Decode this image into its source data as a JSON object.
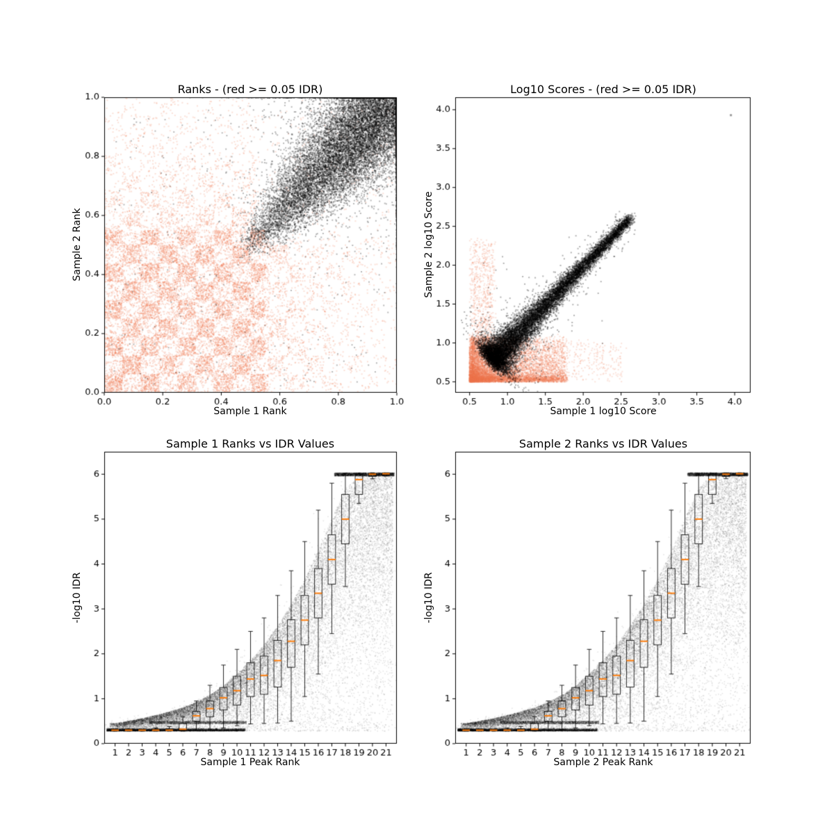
{
  "chart_data": [
    {
      "id": "ranks-scatter",
      "type": "scatter",
      "title": "Ranks - (red >= 0.05 IDR)",
      "xlabel": "Sample 1 Rank",
      "ylabel": "Sample 2 Rank",
      "xlim": [
        0,
        1
      ],
      "ylim": [
        0,
        1
      ],
      "xtick_values": [
        0,
        0.2,
        0.4,
        0.6,
        0.8,
        1.0
      ],
      "xtick_labels": [
        "0.0",
        "0.2",
        "0.4",
        "0.6",
        "0.8",
        "1.0"
      ],
      "ytick_values": [
        0,
        0.2,
        0.4,
        0.6,
        0.8,
        1.0
      ],
      "ytick_labels": [
        "0.0",
        "0.2",
        "0.4",
        "0.6",
        "0.8",
        "1.0"
      ],
      "series": [
        {
          "name": "irreproducible-peaks (IDR >= 0.05)",
          "color": "#f1764f",
          "alpha": 0.22,
          "size": 2,
          "gen": {
            "kind": "checker",
            "n": 17000,
            "cells": 16
          }
        },
        {
          "name": "reproducible-peaks (IDR < 0.05)",
          "color": "#000000",
          "alpha": 0.28,
          "size": 2,
          "gen": {
            "kind": "comet",
            "n": 15000,
            "from": [
              0.47,
              0.47
            ],
            "to": [
              0.997,
              0.997
            ],
            "tPow": 0.5,
            "wMode": "linear",
            "wMin": 0.012,
            "wMax": 0.125,
            "wEnd": 0.35,
            "alongJitter": 0.02,
            "halo": 0.07,
            "haloMult": 3.2,
            "scatter": 0.02,
            "scatterBox": [
              0.02,
              0.02,
              0.95,
              0.95
            ],
            "clip": [
              0.001,
              0.9985
            ]
          }
        }
      ]
    },
    {
      "id": "log10-scores-scatter",
      "type": "scatter",
      "title": "Log10 Scores - (red >= 0.05 IDR)",
      "xlabel": "Sample 1 log10 Score",
      "ylabel": "Sample 2 log10 Score",
      "xlim": [
        0.31,
        4.21
      ],
      "ylim": [
        0.36,
        4.16
      ],
      "xtick_values": [
        0.5,
        1.0,
        1.5,
        2.0,
        2.5,
        3.0,
        3.5,
        4.0
      ],
      "xtick_labels": [
        "0.5",
        "1.0",
        "1.5",
        "2.0",
        "2.5",
        "3.0",
        "3.5",
        "4.0"
      ],
      "ytick_values": [
        0.5,
        1.0,
        1.5,
        2.0,
        2.5,
        3.0,
        3.5,
        4.0
      ],
      "ytick_labels": [
        "0.5",
        "1.0",
        "1.5",
        "2.0",
        "2.5",
        "3.0",
        "3.5",
        "4.0"
      ],
      "series": [
        {
          "name": "irreproducible-peaks (IDR >= 0.05)",
          "color": "#f1764f",
          "alpha": 0.2,
          "size": 2,
          "gen": {
            "kind": "scoresBlob",
            "n": 10000
          }
        },
        {
          "name": "reproducible-peaks (IDR < 0.05)",
          "color": "#000000",
          "alpha": 0.3,
          "size": 2,
          "gen": {
            "kind": "comet",
            "n": 13000,
            "from": [
              0.8,
              0.78
            ],
            "to": [
              2.62,
              2.6
            ],
            "tPow": 2.0,
            "wMode": "decay",
            "wMin": 0.025,
            "wMax": 0.105,
            "wDecay": 2.5,
            "alongJitter": 0.04,
            "halo": 0.05,
            "haloMult": 3.0,
            "scatter": 0.003,
            "scatterBox": [
              0.55,
              0.55,
              1.8,
              1.6
            ]
          }
        },
        {
          "name": "outlier-point",
          "color": "#8a8a8a",
          "alpha": 0.85,
          "size": 3,
          "gen": {
            "kind": "points",
            "pts": [
              [
                3.95,
                3.93
              ]
            ]
          }
        }
      ]
    },
    {
      "id": "sample1-rank-vs-idr",
      "type": "scatter-boxplot",
      "title": "Sample 1 Ranks vs IDR Values",
      "xlabel": "Sample 1 Peak Rank",
      "ylabel": "-log10 IDR",
      "xlim": [
        0.2,
        21.8
      ],
      "ylim": [
        0,
        6.5
      ],
      "xtick_values": [
        1,
        2,
        3,
        4,
        5,
        6,
        7,
        8,
        9,
        10,
        11,
        12,
        13,
        14,
        15,
        16,
        17,
        18,
        19,
        20,
        21
      ],
      "xtick_labels": [
        "1",
        "2",
        "3",
        "4",
        "5",
        "6",
        "7",
        "8",
        "9",
        "10",
        "11",
        "12",
        "13",
        "14",
        "15",
        "16",
        "17",
        "18",
        "19",
        "20",
        "21"
      ],
      "ytick_values": [
        0,
        1,
        2,
        3,
        4,
        5,
        6
      ],
      "ytick_labels": [
        "0",
        "1",
        "2",
        "3",
        "4",
        "5",
        "6"
      ],
      "series": [
        {
          "name": "peak-idr-points",
          "color": "#000000",
          "alpha": 0.1,
          "size": 1.6,
          "gen": {
            "kind": "idrCloud",
            "n": 30000,
            "envelope_ranks": [
              1,
              2,
              3,
              4,
              5,
              6,
              7,
              8,
              9,
              10,
              11,
              12,
              13,
              14,
              15,
              16,
              17,
              18,
              19,
              20,
              21
            ],
            "envelope": [
              0.45,
              0.5,
              0.56,
              0.63,
              0.71,
              0.8,
              0.92,
              1.08,
              1.28,
              1.55,
              1.85,
              2.2,
              2.62,
              3.1,
              3.66,
              4.3,
              5.0,
              5.68,
              6.0,
              6.02,
              6.02
            ]
          }
        }
      ],
      "boxplots": {
        "box_color": "#000000",
        "median_color": "#ff7f0e",
        "box_width": 0.55,
        "ranks": [
          1,
          2,
          3,
          4,
          5,
          6,
          7,
          8,
          9,
          10,
          11,
          12,
          13,
          14,
          15,
          16,
          17,
          18,
          19,
          20,
          21
        ],
        "median": [
          0.3,
          0.3,
          0.3,
          0.3,
          0.3,
          0.32,
          0.62,
          0.78,
          1.02,
          1.18,
          1.44,
          1.52,
          1.85,
          2.28,
          2.75,
          3.35,
          4.1,
          5.0,
          5.88,
          6.0,
          6.01
        ],
        "q1": [
          0.29,
          0.29,
          0.29,
          0.29,
          0.29,
          0.3,
          0.5,
          0.6,
          0.75,
          0.86,
          1.05,
          1.1,
          1.26,
          1.7,
          2.2,
          2.8,
          3.55,
          4.45,
          5.55,
          5.95,
          5.99
        ],
        "q3": [
          0.31,
          0.31,
          0.31,
          0.32,
          0.33,
          0.45,
          0.72,
          0.95,
          1.25,
          1.5,
          1.8,
          1.95,
          2.3,
          2.76,
          3.3,
          3.9,
          4.65,
          5.55,
          6.0,
          6.02,
          6.02
        ],
        "whisker_low": [
          0.28,
          0.28,
          0.28,
          0.28,
          0.28,
          0.28,
          0.3,
          0.32,
          0.35,
          0.4,
          0.44,
          0.45,
          0.46,
          0.5,
          1.05,
          1.55,
          2.45,
          3.5,
          5.35,
          5.9,
          5.96
        ],
        "whisker_high": [
          0.32,
          0.32,
          0.32,
          0.35,
          0.38,
          0.6,
          0.95,
          1.3,
          1.75,
          2.1,
          2.5,
          2.8,
          3.3,
          3.85,
          4.5,
          5.2,
          5.8,
          6.02,
          6.02,
          6.03,
          6.03
        ]
      }
    },
    {
      "id": "sample2-rank-vs-idr",
      "type": "scatter-boxplot",
      "title": "Sample 2 Ranks vs IDR Values",
      "xlabel": "Sample 2 Peak Rank",
      "ylabel": "-log10 IDR",
      "xlim": [
        0.2,
        21.8
      ],
      "ylim": [
        0,
        6.5
      ],
      "xtick_values": [
        1,
        2,
        3,
        4,
        5,
        6,
        7,
        8,
        9,
        10,
        11,
        12,
        13,
        14,
        15,
        16,
        17,
        18,
        19,
        20,
        21
      ],
      "xtick_labels": [
        "1",
        "2",
        "3",
        "4",
        "5",
        "6",
        "7",
        "8",
        "9",
        "10",
        "11",
        "12",
        "13",
        "14",
        "15",
        "16",
        "17",
        "18",
        "19",
        "20",
        "21"
      ],
      "ytick_values": [
        0,
        1,
        2,
        3,
        4,
        5,
        6
      ],
      "ytick_labels": [
        "0",
        "1",
        "2",
        "3",
        "4",
        "5",
        "6"
      ],
      "series": [
        {
          "name": "peak-idr-points",
          "color": "#000000",
          "alpha": 0.1,
          "size": 1.6,
          "gen": {
            "kind": "idrCloud",
            "n": 30000,
            "envelope_ranks": [
              1,
              2,
              3,
              4,
              5,
              6,
              7,
              8,
              9,
              10,
              11,
              12,
              13,
              14,
              15,
              16,
              17,
              18,
              19,
              20,
              21
            ],
            "envelope": [
              0.45,
              0.5,
              0.56,
              0.63,
              0.71,
              0.8,
              0.92,
              1.08,
              1.28,
              1.55,
              1.85,
              2.2,
              2.62,
              3.1,
              3.66,
              4.3,
              5.0,
              5.68,
              6.0,
              6.02,
              6.02
            ]
          }
        }
      ],
      "boxplots": {
        "box_color": "#000000",
        "median_color": "#ff7f0e",
        "box_width": 0.55,
        "ranks": [
          1,
          2,
          3,
          4,
          5,
          6,
          7,
          8,
          9,
          10,
          11,
          12,
          13,
          14,
          15,
          16,
          17,
          18,
          19,
          20,
          21
        ],
        "median": [
          0.3,
          0.3,
          0.3,
          0.3,
          0.3,
          0.32,
          0.62,
          0.78,
          1.02,
          1.18,
          1.44,
          1.52,
          1.85,
          2.28,
          2.75,
          3.35,
          4.1,
          5.0,
          5.88,
          6.0,
          6.01
        ],
        "q1": [
          0.29,
          0.29,
          0.29,
          0.29,
          0.29,
          0.3,
          0.5,
          0.6,
          0.75,
          0.86,
          1.05,
          1.1,
          1.26,
          1.7,
          2.2,
          2.8,
          3.55,
          4.45,
          5.55,
          5.95,
          5.99
        ],
        "q3": [
          0.31,
          0.31,
          0.31,
          0.32,
          0.33,
          0.45,
          0.72,
          0.95,
          1.25,
          1.5,
          1.8,
          1.95,
          2.3,
          2.76,
          3.3,
          3.9,
          4.65,
          5.55,
          6.0,
          6.02,
          6.02
        ],
        "whisker_low": [
          0.28,
          0.28,
          0.28,
          0.28,
          0.28,
          0.28,
          0.3,
          0.32,
          0.35,
          0.4,
          0.44,
          0.45,
          0.46,
          0.5,
          1.05,
          1.55,
          2.45,
          3.5,
          5.35,
          5.9,
          5.96
        ],
        "whisker_high": [
          0.32,
          0.32,
          0.32,
          0.35,
          0.38,
          0.6,
          0.95,
          1.3,
          1.75,
          2.1,
          2.5,
          2.8,
          3.3,
          3.85,
          4.5,
          5.2,
          5.8,
          6.02,
          6.02,
          6.03,
          6.03
        ]
      }
    }
  ]
}
